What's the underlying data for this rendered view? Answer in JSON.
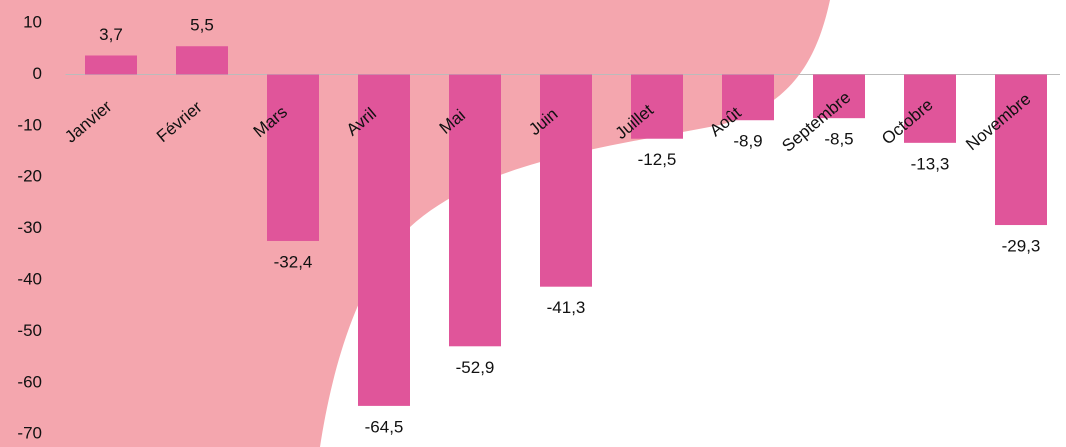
{
  "chart_data": {
    "type": "bar",
    "categories": [
      "Janvier",
      "Février",
      "Mars",
      "Avril",
      "Mai",
      "Juin",
      "Juillet",
      "Août",
      "Septembre",
      "Octobre",
      "Novembre"
    ],
    "values": [
      3.7,
      5.5,
      -32.4,
      -64.5,
      -52.9,
      -41.3,
      -12.5,
      -8.9,
      -8.5,
      -13.3,
      -29.3
    ],
    "value_labels": [
      "3,7",
      "5,5",
      "-32,4",
      "-64,5",
      "-52,9",
      "-41,3",
      "-12,5",
      "-8,9",
      "-8,5",
      "-13,3",
      "-29,3"
    ],
    "color": "#e0559a",
    "ylim": [
      -72.5,
      14.5
    ],
    "yticks": [
      10,
      0,
      -10,
      -20,
      -30,
      -40,
      -50,
      -60,
      -70
    ],
    "grid": false
  }
}
